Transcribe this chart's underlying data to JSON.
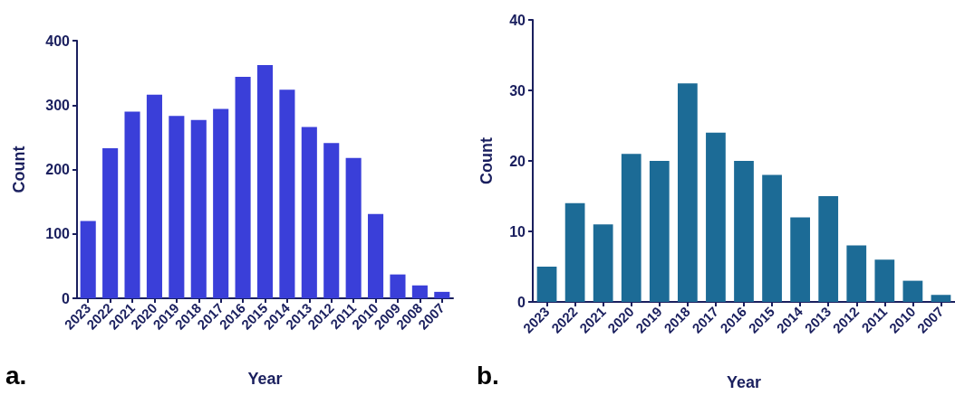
{
  "chart_data": [
    {
      "type": "bar",
      "xlabel": "Year",
      "ylabel": "Count",
      "categories": [
        "2023",
        "2022",
        "2021",
        "2020",
        "2019",
        "2018",
        "2017",
        "2016",
        "2015",
        "2014",
        "2013",
        "2012",
        "2011",
        "2010",
        "2009",
        "2008",
        "2007"
      ],
      "values": [
        120,
        233,
        290,
        316,
        283,
        277,
        294,
        344,
        362,
        324,
        266,
        241,
        218,
        131,
        37,
        20,
        10
      ],
      "color": "#3a3fd9",
      "ylim": [
        0,
        400
      ],
      "yticks": [
        0,
        100,
        200,
        300,
        400
      ],
      "grid": false,
      "annotations": [
        "a."
      ]
    },
    {
      "type": "bar",
      "xlabel": "Year",
      "ylabel": "Count",
      "categories": [
        "2023",
        "2022",
        "2021",
        "2020",
        "2019",
        "2018",
        "2017",
        "2016",
        "2015",
        "2014",
        "2013",
        "2012",
        "2011",
        "2010",
        "2007"
      ],
      "values": [
        5,
        14,
        11,
        21,
        20,
        31,
        24,
        20,
        18,
        12,
        15,
        8,
        6,
        3,
        1
      ],
      "color": "#1c6b96",
      "ylim": [
        0,
        40
      ],
      "yticks": [
        0,
        10,
        20,
        30,
        40
      ],
      "grid": false,
      "annotations": [
        "b."
      ]
    }
  ]
}
